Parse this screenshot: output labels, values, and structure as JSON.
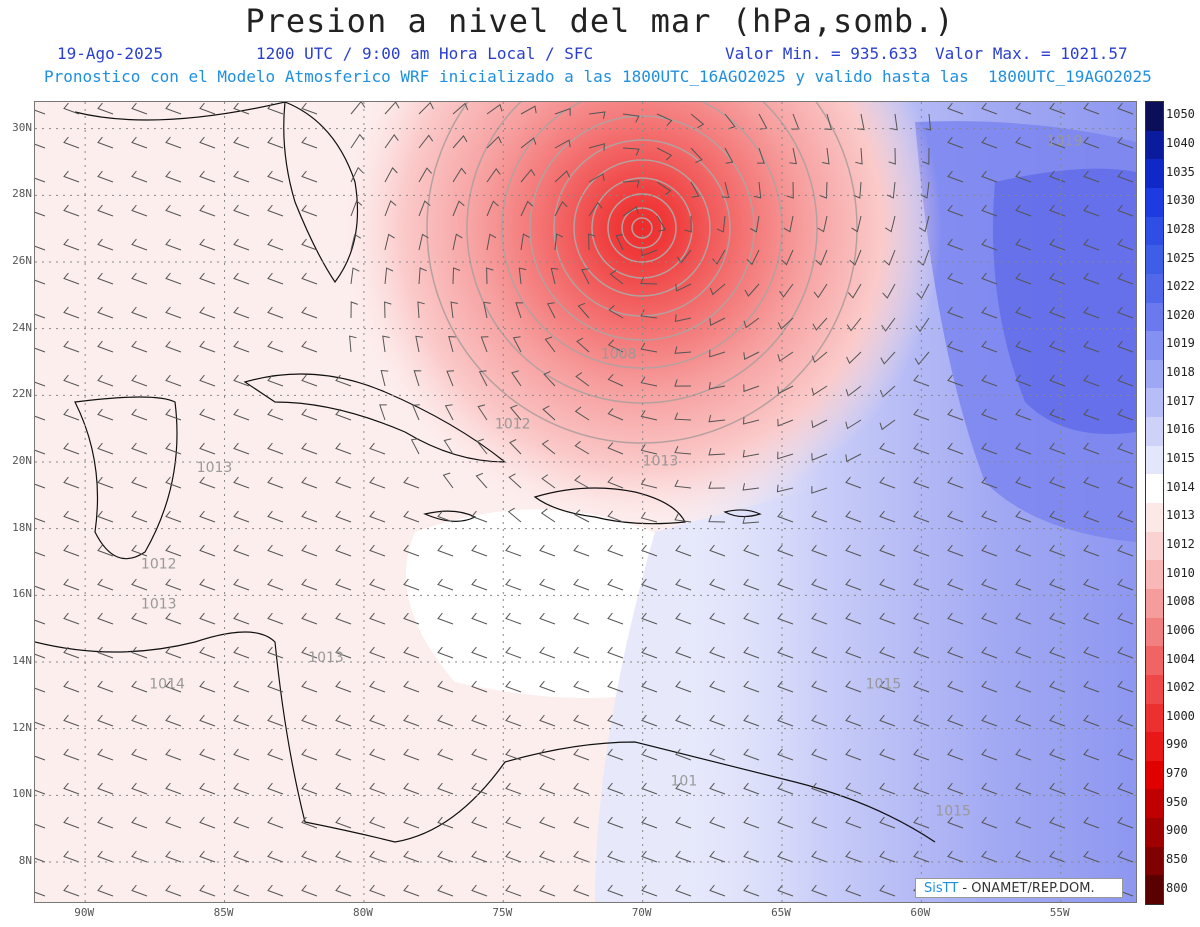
{
  "title": "Presion a nivel del mar (hPa,somb.)",
  "date": "19-Ago-2025",
  "time_text": "1200 UTC / 9:00 am Hora Local / SFC",
  "min_text": "Valor Min. = 935.633",
  "max_text": "Valor Max. = 1021.57",
  "forecast_text": "Pronostico con el Modelo Atmosferico WRF inicializado a las 1800UTC_16AGO2025 y valido hasta las  1800UTC_19AGO2025",
  "lat_labels": [
    "30N",
    "28N",
    "26N",
    "24N",
    "22N",
    "20N",
    "18N",
    "16N",
    "14N",
    "12N",
    "10N",
    "8N"
  ],
  "lon_labels": [
    "90W",
    "85W",
    "80W",
    "75W",
    "70W",
    "65W",
    "60W",
    "55W"
  ],
  "contour_labels": [
    {
      "text": "1019",
      "lon": -55.5,
      "lat": 29.5
    },
    {
      "text": "1008",
      "lon": -71.5,
      "lat": 23.1
    },
    {
      "text": "1012",
      "lon": -75.3,
      "lat": 21.0
    },
    {
      "text": "1013",
      "lon": -70.0,
      "lat": 19.9
    },
    {
      "text": "1013",
      "lon": -86.0,
      "lat": 19.7
    },
    {
      "text": "1012",
      "lon": -88.0,
      "lat": 16.8
    },
    {
      "text": "1013",
      "lon": -88.0,
      "lat": 15.6
    },
    {
      "text": "1013",
      "lon": -82.0,
      "lat": 14.0
    },
    {
      "text": "1014",
      "lon": -87.7,
      "lat": 13.2
    },
    {
      "text": "1015",
      "lon": -62.0,
      "lat": 13.2
    },
    {
      "text": "1015",
      "lon": -59.5,
      "lat": 9.4
    },
    {
      "text": "101",
      "lon": -69.0,
      "lat": 10.3
    }
  ],
  "colorbar": {
    "labels": [
      "1050",
      "1040",
      "1035",
      "1030",
      "1028",
      "1025",
      "1022",
      "1020",
      "1019",
      "1018",
      "1017",
      "1016",
      "1015",
      "1014",
      "1013",
      "1012",
      "1010",
      "1008",
      "1006",
      "1004",
      "1002",
      "1000",
      "990",
      "970",
      "950",
      "900",
      "850",
      "800"
    ],
    "colors": [
      "#0b0f5a",
      "#0a1b9e",
      "#1028c8",
      "#1d3be0",
      "#2e4ee6",
      "#3e5ee8",
      "#5168ea",
      "#6a7aee",
      "#8490f2",
      "#9ea7f4",
      "#b7bdf6",
      "#ced2f8",
      "#e4e6fb",
      "#ffffff",
      "#fde8e8",
      "#fbd2d2",
      "#f8b8b8",
      "#f59c9c",
      "#f28080",
      "#f06464",
      "#ee4848",
      "#ec2f2f",
      "#e81818",
      "#e00000",
      "#c00000",
      "#a00000",
      "#800000",
      "#5a0000"
    ]
  },
  "credit": {
    "sis": "SisTT",
    "rest": " - ONAMET/REP.DOM."
  }
}
